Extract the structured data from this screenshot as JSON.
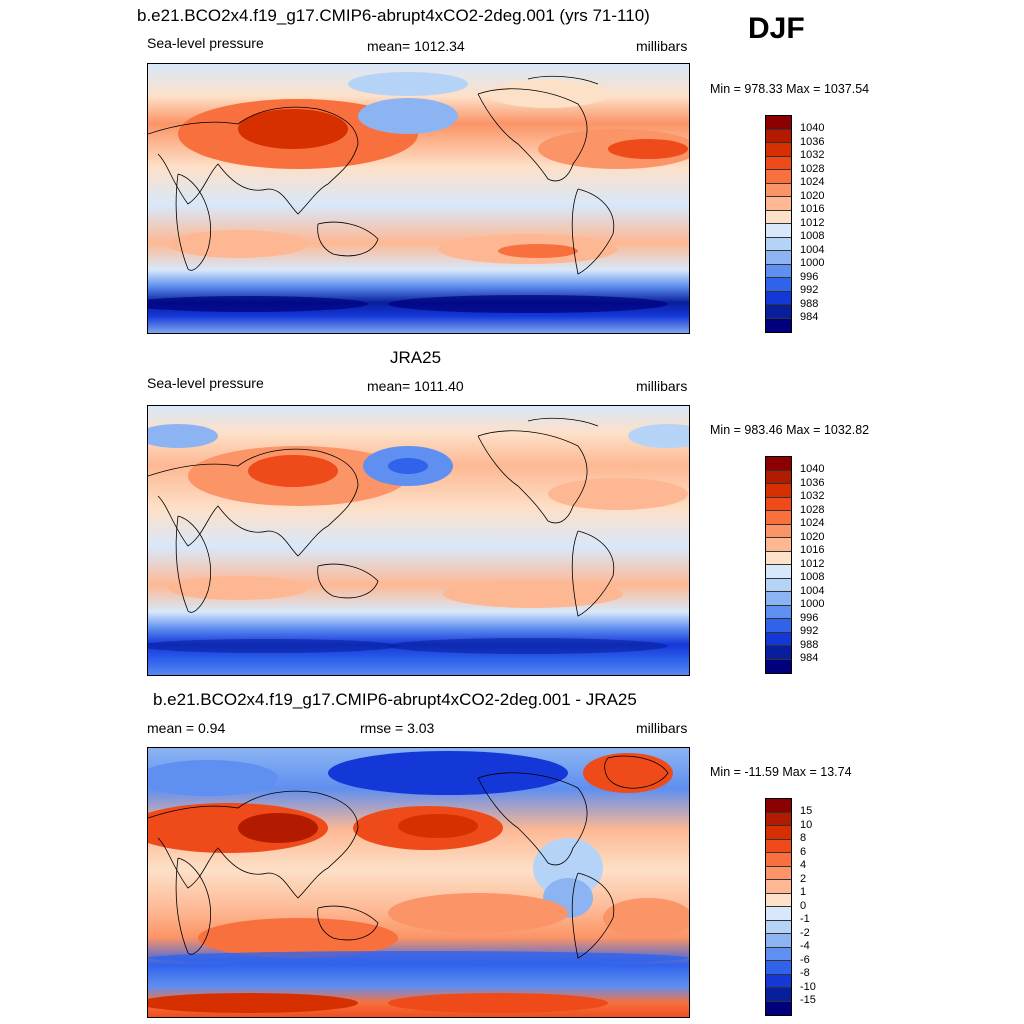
{
  "season": "DJF",
  "panels": [
    {
      "title": "b.e21.BCO2x4.f19_g17.CMIP6-abrupt4xCO2-2deg.001 (yrs 71-110)",
      "left_label": "Sea-level pressure",
      "center_label": "mean= 1012.34",
      "right_label": "millibars",
      "minmax": "Min = 978.33 Max = 1037.54"
    },
    {
      "title": "JRA25",
      "left_label": "Sea-level pressure",
      "center_label": "mean= 1011.40",
      "right_label": "millibars",
      "minmax": "Min = 983.46 Max = 1032.82"
    },
    {
      "title": "b.e21.BCO2x4.f19_g17.CMIP6-abrupt4xCO2-2deg.001 - JRA25",
      "left_label": "mean =   0.94",
      "center_label": "rmse =   3.03",
      "right_label": "millibars",
      "minmax": "Min = -11.59 Max =  13.74"
    }
  ],
  "legend_abs": {
    "labels": [
      "1040",
      "1036",
      "1032",
      "1028",
      "1024",
      "1020",
      "1016",
      "1012",
      "1008",
      "1004",
      "1000",
      "996",
      "992",
      "988",
      "984"
    ],
    "colors": [
      "#8b0000",
      "#b31b00",
      "#d63000",
      "#ee4a1a",
      "#f8703e",
      "#fb9466",
      "#fdb893",
      "#fde0c8",
      "#d8e8fa",
      "#b5d2f7",
      "#8cb4f2",
      "#5f8ff0",
      "#2f63ec",
      "#1438d8",
      "#081f9c",
      "#00007f"
    ]
  },
  "legend_diff": {
    "labels": [
      "15",
      "10",
      "8",
      "6",
      "4",
      "2",
      "1",
      "0",
      "-1",
      "-2",
      "-4",
      "-6",
      "-8",
      "-10",
      "-15"
    ],
    "colors": [
      "#8b0000",
      "#b31b00",
      "#d63000",
      "#ee4a1a",
      "#f8703e",
      "#fb9466",
      "#fdb893",
      "#fde0c8",
      "#d8e8fa",
      "#b5d2f7",
      "#8cb4f2",
      "#5f8ff0",
      "#2f63ec",
      "#1438d8",
      "#081f9c",
      "#00007f"
    ]
  }
}
